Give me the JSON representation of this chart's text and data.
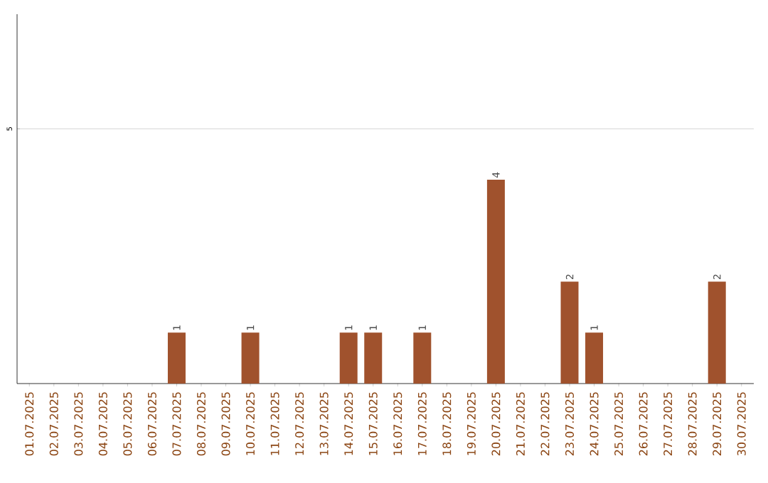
{
  "chart_data": {
    "type": "bar",
    "categories": [
      "01.07.2025",
      "02.07.2025",
      "03.07.2025",
      "04.07.2025",
      "05.07.2025",
      "06.07.2025",
      "07.07.2025",
      "08.07.2025",
      "09.07.2025",
      "10.07.2025",
      "11.07.2025",
      "12.07.2025",
      "13.07.2025",
      "14.07.2025",
      "15.07.2025",
      "16.07.2025",
      "17.07.2025",
      "18.07.2025",
      "19.07.2025",
      "20.07.2025",
      "21.07.2025",
      "22.07.2025",
      "23.07.2025",
      "24.07.2025",
      "25.07.2025",
      "26.07.2025",
      "27.07.2025",
      "28.07.2025",
      "29.07.2025",
      "30.07.2025"
    ],
    "values": [
      0,
      0,
      0,
      0,
      0,
      0,
      1,
      0,
      0,
      1,
      0,
      0,
      0,
      1,
      1,
      0,
      1,
      0,
      0,
      4,
      0,
      0,
      2,
      1,
      0,
      0,
      0,
      0,
      2,
      0
    ],
    "value_labels": [
      null,
      null,
      null,
      null,
      null,
      null,
      "1",
      null,
      null,
      "1",
      null,
      null,
      null,
      "1",
      "1",
      null,
      "1",
      null,
      null,
      "4",
      null,
      null,
      "2",
      "1",
      null,
      null,
      null,
      null,
      "2",
      null
    ],
    "color": "#a0522d",
    "ylim": [
      0,
      7.25
    ],
    "yticks": [
      5
    ],
    "grid": "y"
  }
}
